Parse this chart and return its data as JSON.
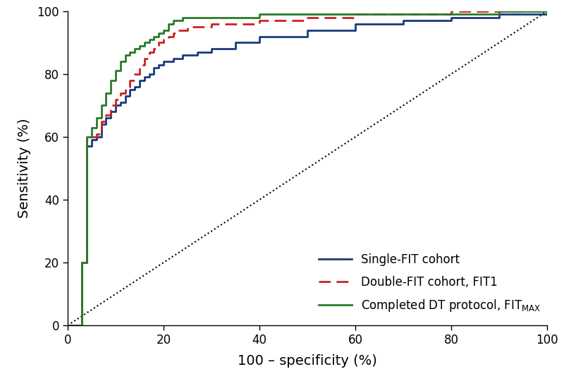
{
  "xlabel": "100 – specificity (%)",
  "ylabel": "Sensitivity (%)",
  "xlim": [
    0,
    100
  ],
  "ylim": [
    0,
    100
  ],
  "xticks": [
    0,
    20,
    40,
    60,
    80,
    100
  ],
  "yticks": [
    0,
    20,
    40,
    60,
    80,
    100
  ],
  "single_fit_color": "#1a3a7c",
  "double_fit_color": "#cc2222",
  "completed_dt_color": "#2a7a2a",
  "single_fit_label": "Single-FIT cohort",
  "double_fit_label": "Double-FIT cohort, FIT1",
  "single_fit_x": [
    0,
    1,
    2,
    3,
    4,
    5,
    6,
    7,
    8,
    9,
    10,
    11,
    12,
    13,
    14,
    15,
    16,
    17,
    18,
    19,
    20,
    21,
    22,
    23,
    24,
    25,
    26,
    27,
    28,
    30,
    35,
    40,
    50,
    60,
    70,
    80,
    90,
    100
  ],
  "single_fit_y": [
    0,
    0,
    0,
    20,
    57,
    59,
    60,
    64,
    66,
    68,
    70,
    71,
    73,
    75,
    76,
    78,
    79,
    80,
    82,
    83,
    84,
    84,
    85,
    85,
    86,
    86,
    86,
    87,
    87,
    88,
    90,
    92,
    94,
    96,
    97,
    98,
    99,
    100
  ],
  "double_fit_x": [
    0,
    1,
    2,
    3,
    4,
    5,
    6,
    7,
    8,
    9,
    10,
    11,
    12,
    13,
    14,
    15,
    16,
    17,
    18,
    19,
    20,
    21,
    22,
    23,
    24,
    25,
    26,
    27,
    28,
    30,
    35,
    40,
    50,
    60,
    70,
    80,
    90,
    100
  ],
  "double_fit_y": [
    0,
    0,
    0,
    20,
    59,
    60,
    61,
    65,
    67,
    70,
    72,
    74,
    76,
    78,
    80,
    83,
    85,
    87,
    88,
    90,
    91,
    92,
    93,
    94,
    94,
    95,
    95,
    95,
    95,
    96,
    96,
    97,
    98,
    99,
    99,
    100,
    100,
    100
  ],
  "completed_dt_x": [
    0,
    1,
    2,
    3,
    4,
    5,
    6,
    7,
    8,
    9,
    10,
    11,
    12,
    13,
    14,
    15,
    16,
    17,
    18,
    19,
    20,
    21,
    22,
    23,
    24,
    25,
    26,
    27,
    28,
    30,
    35,
    40,
    50,
    60,
    70,
    80,
    90,
    100
  ],
  "completed_dt_y": [
    0,
    0,
    0,
    20,
    60,
    63,
    66,
    70,
    74,
    78,
    81,
    84,
    86,
    87,
    88,
    89,
    90,
    91,
    92,
    93,
    94,
    96,
    97,
    97,
    98,
    98,
    98,
    98,
    98,
    98,
    98,
    99,
    99,
    99,
    99,
    99,
    100,
    100
  ]
}
